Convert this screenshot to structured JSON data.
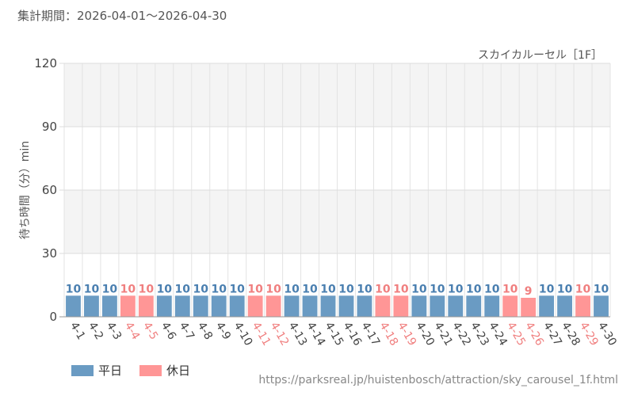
{
  "header": {
    "period_label": "集計期間：2026-04-01～2026-04-30"
  },
  "chart_data": {
    "type": "bar",
    "title": "スカイカルーセル［1F］",
    "ylabel": "待ち時間（分）min",
    "xlabel": "",
    "ylim": [
      0,
      120
    ],
    "yticks": [
      0,
      30,
      60,
      90,
      120
    ],
    "grid": true,
    "legend_position": "bottom-left",
    "categories": [
      "4-1",
      "4-2",
      "4-3",
      "4-4",
      "4-5",
      "4-6",
      "4-7",
      "4-8",
      "4-9",
      "4-10",
      "4-11",
      "4-12",
      "4-13",
      "4-14",
      "4-15",
      "4-16",
      "4-17",
      "4-18",
      "4-19",
      "4-20",
      "4-21",
      "4-22",
      "4-23",
      "4-24",
      "4-25",
      "4-26",
      "4-27",
      "4-28",
      "4-29",
      "4-30"
    ],
    "values": [
      10,
      10,
      10,
      10,
      10,
      10,
      10,
      10,
      10,
      10,
      10,
      10,
      10,
      10,
      10,
      10,
      10,
      10,
      10,
      10,
      10,
      10,
      10,
      10,
      10,
      9,
      10,
      10,
      10,
      10
    ],
    "day_type": [
      "平日",
      "平日",
      "平日",
      "休日",
      "休日",
      "平日",
      "平日",
      "平日",
      "平日",
      "平日",
      "休日",
      "休日",
      "平日",
      "平日",
      "平日",
      "平日",
      "平日",
      "休日",
      "休日",
      "平日",
      "平日",
      "平日",
      "平日",
      "平日",
      "休日",
      "休日",
      "平日",
      "平日",
      "休日",
      "平日"
    ],
    "series_colors": {
      "平日": "#6a9bc3",
      "休日": "#ff9696"
    },
    "label_colors": {
      "平日": "#4a7fb0",
      "休日": "#f07f7f"
    }
  },
  "legend": {
    "items": [
      {
        "label": "平日",
        "color": "#6a9bc3"
      },
      {
        "label": "休日",
        "color": "#ff9696"
      }
    ]
  },
  "source": {
    "url": "https://parksreal.jp/huistenbosch/attraction/sky_carousel_1f.html"
  }
}
